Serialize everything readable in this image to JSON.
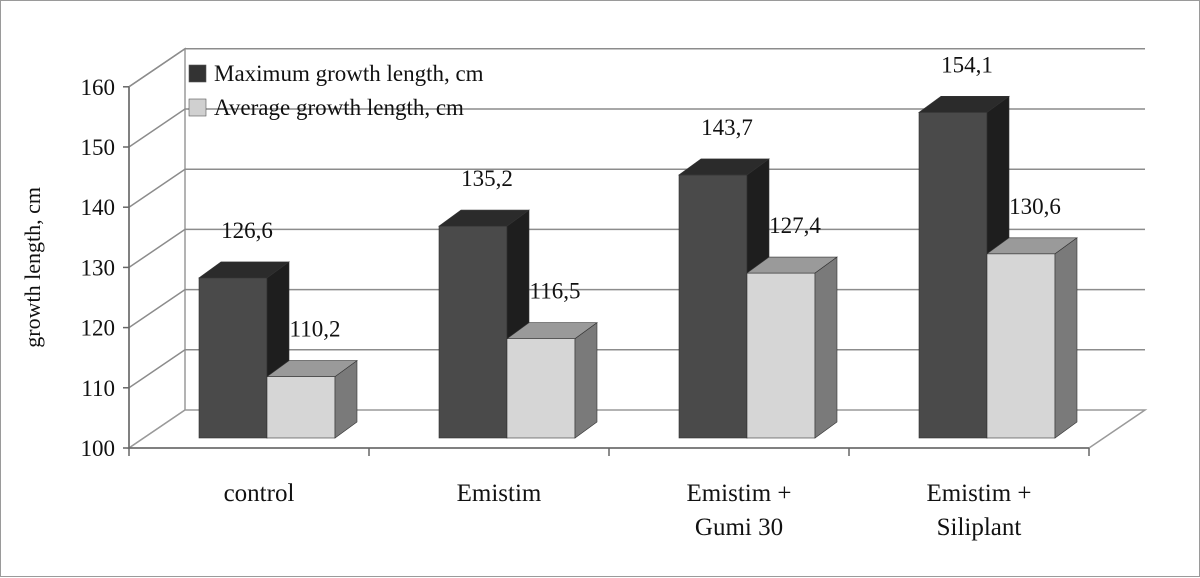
{
  "chart_data": {
    "type": "bar",
    "style": "3d-clustered-column",
    "title": "",
    "xlabel": "",
    "ylabel": "growth length, cm",
    "ylim": [
      100,
      160
    ],
    "yticks": [
      100,
      110,
      120,
      130,
      140,
      150,
      160
    ],
    "grid": true,
    "legend_position": "top-left",
    "categories": [
      [
        "control"
      ],
      [
        "Emistim"
      ],
      [
        "Emistim +",
        "Gumi 30"
      ],
      [
        "Emistim +",
        "Siliplant"
      ]
    ],
    "series": [
      {
        "name": "Maximum growth length, cm",
        "values": [
          126.6,
          135.2,
          143.7,
          154.1
        ],
        "labels": [
          "126,6",
          "135,2",
          "143,7",
          "154,1"
        ],
        "color": "#4a4a4a"
      },
      {
        "name": "Average growth length, cm",
        "values": [
          110.2,
          116.5,
          127.4,
          130.6
        ],
        "labels": [
          "110,2",
          "116,5",
          "127,4",
          "130,6"
        ],
        "color": "#d6d6d6"
      }
    ]
  }
}
